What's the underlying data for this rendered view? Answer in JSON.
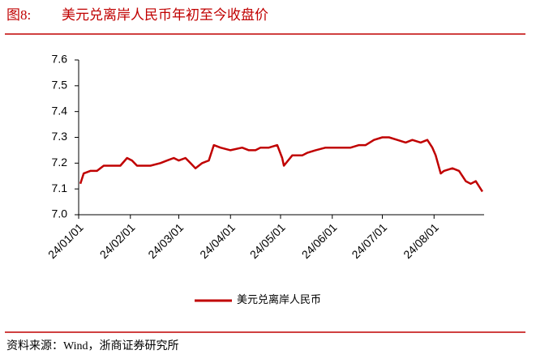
{
  "chart_data": {
    "type": "line",
    "figure_label": "图8:",
    "title": "美元兑离岸人民币年初至今收盘价",
    "source": "资料来源：Wind，浙商证券研究所",
    "xlim": [
      "24/01/01",
      "24/08/31"
    ],
    "xticks": [
      "24/01/01",
      "24/02/01",
      "24/03/01",
      "24/04/01",
      "24/05/01",
      "24/06/01",
      "24/07/01",
      "24/08/01"
    ],
    "ylim": [
      7.0,
      7.6
    ],
    "yticks": [
      {
        "value": 7.0,
        "label": "7.0"
      },
      7.1,
      7.2,
      7.3,
      7.4,
      7.5,
      7.6
    ],
    "grid": false,
    "legend": "bottom",
    "x": [
      "24/01/02",
      "24/01/04",
      "24/01/08",
      "24/01/12",
      "24/01/16",
      "24/01/19",
      "24/01/23",
      "24/01/26",
      "24/01/30",
      "24/02/02",
      "24/02/05",
      "24/02/08",
      "24/02/13",
      "24/02/19",
      "24/02/23",
      "24/02/27",
      "24/03/01",
      "24/03/05",
      "24/03/08",
      "24/03/11",
      "24/03/15",
      "24/03/19",
      "24/03/22",
      "24/03/26",
      "24/04/01",
      "24/04/08",
      "24/04/12",
      "24/04/16",
      "24/04/19",
      "24/04/24",
      "24/04/29",
      "24/05/02",
      "24/05/03",
      "24/05/08",
      "24/05/14",
      "24/05/17",
      "24/05/22",
      "24/05/28",
      "24/06/03",
      "24/06/07",
      "24/06/12",
      "24/06/17",
      "24/06/21",
      "24/06/26",
      "24/07/01",
      "24/07/05",
      "24/07/10",
      "24/07/15",
      "24/07/19",
      "24/07/24",
      "24/07/28",
      "24/07/31",
      "24/08/02",
      "24/08/05",
      "24/08/07",
      "24/08/12",
      "24/08/16",
      "24/08/20",
      "24/08/23",
      "24/08/26",
      "24/08/28",
      "24/08/30"
    ],
    "series": [
      {
        "name": "美元兑离岸人民币",
        "color": "#c00000",
        "values": [
          7.12,
          7.16,
          7.17,
          7.17,
          7.19,
          7.19,
          7.19,
          7.19,
          7.22,
          7.21,
          7.19,
          7.19,
          7.19,
          7.2,
          7.21,
          7.22,
          7.21,
          7.22,
          7.2,
          7.18,
          7.2,
          7.21,
          7.27,
          7.26,
          7.25,
          7.26,
          7.25,
          7.25,
          7.26,
          7.26,
          7.27,
          7.22,
          7.19,
          7.23,
          7.23,
          7.24,
          7.25,
          7.26,
          7.26,
          7.26,
          7.26,
          7.27,
          7.27,
          7.29,
          7.3,
          7.3,
          7.29,
          7.28,
          7.29,
          7.28,
          7.29,
          7.26,
          7.23,
          7.16,
          7.17,
          7.18,
          7.17,
          7.13,
          7.12,
          7.13,
          7.11,
          7.09
        ]
      }
    ]
  }
}
